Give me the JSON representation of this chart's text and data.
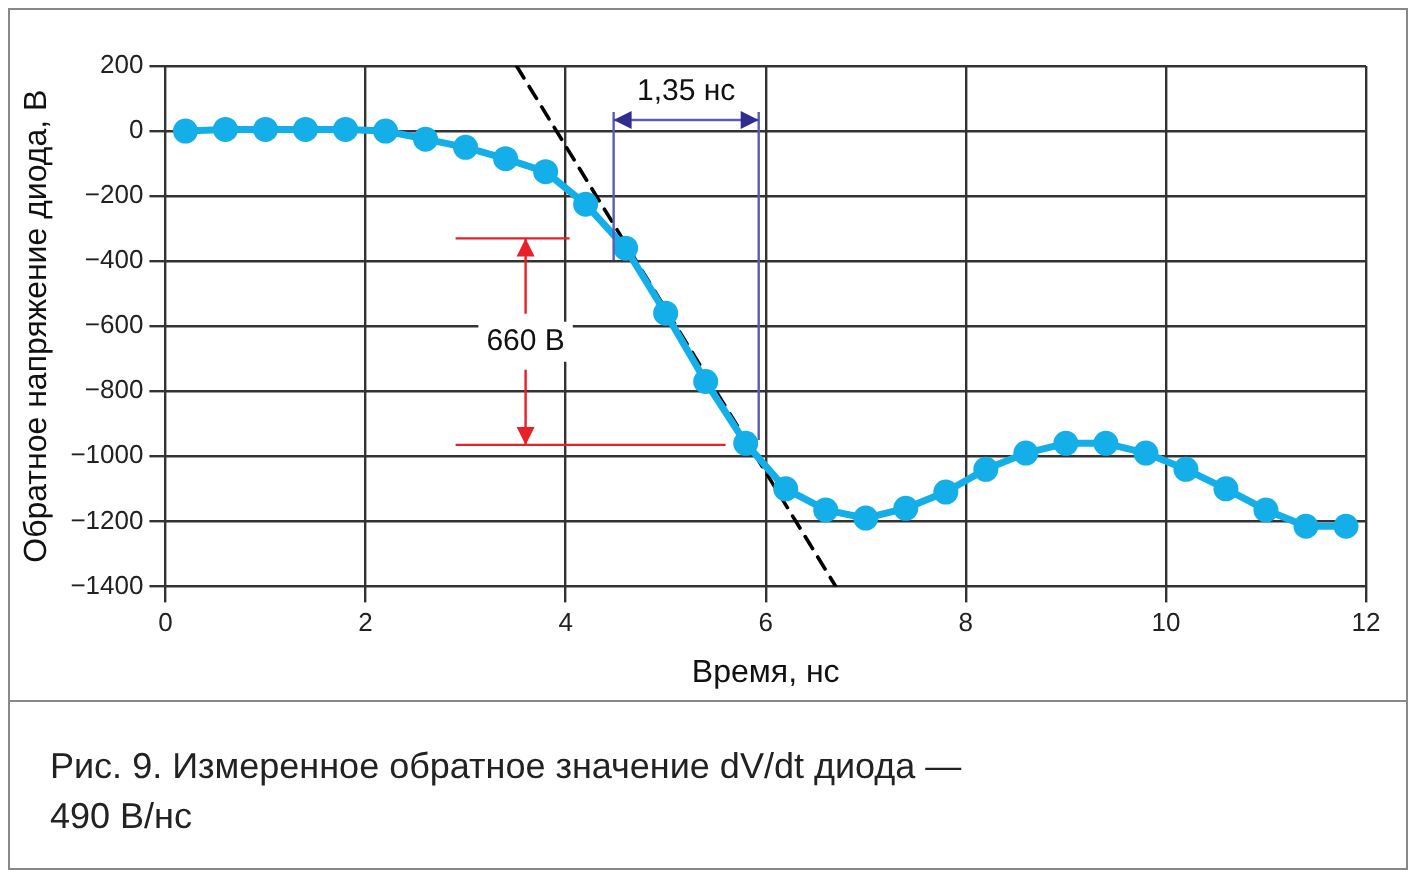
{
  "chart_data": {
    "type": "line",
    "xlabel": "Время, нс",
    "ylabel": "Обратное напряжение диода, В",
    "xlim": [
      0,
      12
    ],
    "xticks": [
      0,
      2,
      4,
      6,
      8,
      10,
      12
    ],
    "ylim": [
      -1400,
      200
    ],
    "yticks": [
      -1400,
      -1200,
      -1000,
      -800,
      -600,
      -400,
      -200,
      0,
      200
    ],
    "grid": true,
    "legend": false,
    "series": [
      {
        "color": "#14aee8",
        "marker": "circle",
        "line_style": "solid",
        "x": [
          0.2,
          0.6,
          1.0,
          1.4,
          1.8,
          2.2,
          2.6,
          3.0,
          3.4,
          3.8,
          4.2,
          4.6,
          5.0,
          5.4,
          5.8,
          6.2,
          6.6,
          7.0,
          7.4,
          7.8,
          8.2,
          8.6,
          9.0,
          9.4,
          9.8,
          10.2,
          10.6,
          11.0,
          11.4,
          11.8
        ],
        "values": [
          0,
          5,
          5,
          5,
          5,
          0,
          -25,
          -50,
          -85,
          -125,
          -225,
          -360,
          -560,
          -770,
          -960,
          -1100,
          -1165,
          -1190,
          -1160,
          -1110,
          -1040,
          -990,
          -960,
          -960,
          -990,
          -1040,
          -1100,
          -1165,
          -1215,
          -1215
        ]
      },
      {
        "type": "line",
        "color": "#000000",
        "marker": "none",
        "line_style": "dashed",
        "x": [
          3.51,
          6.7
        ],
        "values": [
          200,
          -1400
        ]
      }
    ],
    "ref_lines": [
      {
        "axis": "y",
        "value": -330,
        "color": "#e8202a"
      },
      {
        "axis": "y",
        "value": -965,
        "color": "#e8202a",
        "label": "660 В"
      },
      {
        "axis": "x",
        "value": 4.48,
        "color": "#5b5bb5"
      },
      {
        "axis": "x",
        "value": 5.93,
        "color": "#5b5bb5",
        "label": "1,35 нс"
      }
    ],
    "annotations": [
      "Рис. 9. Измеренное обратное значение dV/dt диода — 490 В/нс"
    ]
  }
}
